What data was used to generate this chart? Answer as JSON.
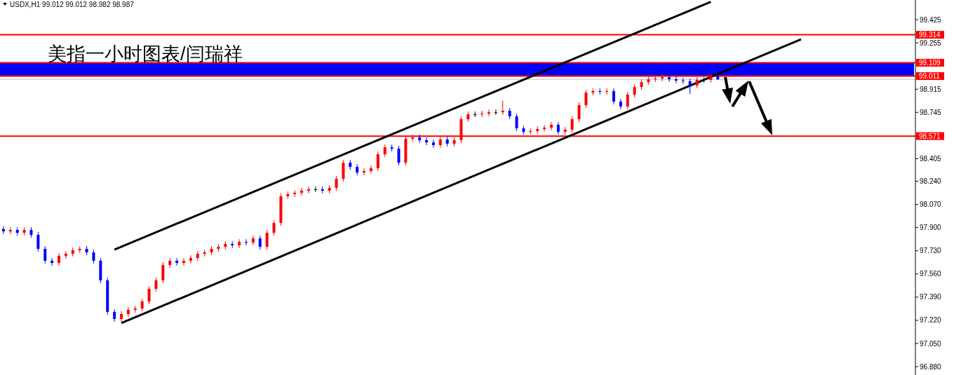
{
  "chart_data": {
    "type": "candlestick",
    "title": "USDX,H1 99.012 99.012 98.982 98.987",
    "annotations": [
      "美指一小时图表/闫瑞祥"
    ],
    "categories": [
      null,
      null,
      null,
      null,
      null,
      null,
      null,
      null,
      null,
      null,
      null,
      null,
      null,
      null,
      null,
      null,
      null,
      null,
      null,
      null,
      null,
      null,
      null,
      null,
      null,
      null,
      null,
      null,
      null,
      null,
      null,
      null,
      null,
      null,
      null,
      null,
      null,
      null,
      null,
      null,
      null,
      null,
      null,
      null,
      null,
      null,
      null,
      null,
      null,
      null,
      null,
      null,
      null,
      null,
      null,
      null,
      null,
      null,
      null,
      null,
      null,
      null,
      null,
      null,
      null,
      null,
      null,
      null,
      null,
      null,
      null,
      null,
      null,
      null,
      null,
      null,
      null,
      null,
      null,
      null,
      null,
      null,
      null,
      null,
      null,
      null,
      null,
      null,
      null,
      null,
      null,
      null,
      null,
      null,
      null,
      null,
      null,
      null,
      null,
      null,
      null,
      null,
      null,
      null,
      null,
      null,
      null,
      null,
      null,
      null,
      null,
      null,
      null,
      null,
      null,
      null,
      null,
      null,
      null,
      null,
      null,
      null,
      null,
      null,
      null,
      null,
      null,
      null,
      null,
      null,
      null,
      null
    ],
    "ohlc": [
      [
        97.89,
        97.91,
        97.852,
        97.872
      ],
      [
        97.872,
        97.903,
        97.852,
        97.883
      ],
      [
        97.883,
        97.903,
        97.842,
        97.862
      ],
      [
        97.862,
        97.903,
        97.842,
        97.883
      ],
      [
        97.883,
        97.903,
        97.827,
        97.847
      ],
      [
        97.847,
        97.867,
        97.724,
        97.744
      ],
      [
        97.744,
        97.764,
        97.637,
        97.657
      ],
      [
        97.657,
        97.677,
        97.621,
        97.641
      ],
      [
        97.641,
        97.713,
        97.621,
        97.693
      ],
      [
        97.693,
        97.728,
        97.673,
        97.708
      ],
      [
        97.708,
        97.754,
        97.688,
        97.734
      ],
      [
        97.734,
        97.764,
        97.714,
        97.744
      ],
      [
        97.744,
        97.764,
        97.698,
        97.718
      ],
      [
        97.718,
        97.738,
        97.637,
        97.657
      ],
      [
        97.657,
        97.677,
        97.493,
        97.513
      ],
      [
        97.513,
        97.533,
        97.262,
        97.282
      ],
      [
        97.282,
        97.302,
        97.21,
        97.23
      ],
      [
        97.23,
        97.286,
        97.21,
        97.266
      ],
      [
        97.266,
        97.317,
        97.246,
        97.297
      ],
      [
        97.297,
        97.327,
        97.277,
        97.307
      ],
      [
        97.307,
        97.378,
        97.287,
        97.358
      ],
      [
        97.358,
        97.471,
        97.338,
        97.451
      ],
      [
        97.451,
        97.533,
        97.431,
        97.513
      ],
      [
        97.513,
        97.646,
        97.493,
        97.626
      ],
      [
        97.626,
        97.677,
        97.606,
        97.657
      ],
      [
        97.657,
        97.677,
        97.621,
        97.641
      ],
      [
        97.641,
        97.677,
        97.621,
        97.657
      ],
      [
        97.657,
        97.697,
        97.637,
        97.677
      ],
      [
        97.677,
        97.728,
        97.657,
        97.708
      ],
      [
        97.708,
        97.738,
        97.688,
        97.718
      ],
      [
        97.718,
        97.764,
        97.698,
        97.744
      ],
      [
        97.744,
        97.779,
        97.724,
        97.759
      ],
      [
        97.759,
        97.8,
        97.739,
        97.78
      ],
      [
        97.78,
        97.8,
        97.75,
        97.77
      ],
      [
        97.77,
        97.815,
        97.75,
        97.795
      ],
      [
        97.795,
        97.815,
        97.77,
        97.79
      ],
      [
        97.79,
        97.841,
        97.77,
        97.821
      ],
      [
        97.821,
        97.841,
        97.739,
        97.759
      ],
      [
        97.759,
        97.882,
        97.739,
        97.862
      ],
      [
        97.862,
        97.954,
        97.842,
        97.934
      ],
      [
        97.934,
        98.15,
        97.914,
        98.13
      ],
      [
        98.13,
        98.165,
        98.11,
        98.145
      ],
      [
        98.145,
        98.175,
        98.125,
        98.155
      ],
      [
        98.155,
        98.191,
        98.135,
        98.171
      ],
      [
        98.171,
        98.201,
        98.151,
        98.181
      ],
      [
        98.181,
        98.201,
        98.161,
        98.181
      ],
      [
        98.181,
        98.201,
        98.151,
        98.171
      ],
      [
        98.171,
        98.211,
        98.151,
        98.191
      ],
      [
        98.191,
        98.278,
        98.171,
        98.258
      ],
      [
        98.258,
        98.396,
        98.238,
        98.376
      ],
      [
        98.376,
        98.396,
        98.325,
        98.345
      ],
      [
        98.345,
        98.365,
        98.284,
        98.304
      ],
      [
        98.304,
        98.335,
        98.284,
        98.315
      ],
      [
        98.315,
        98.355,
        98.295,
        98.335
      ],
      [
        98.335,
        98.458,
        98.315,
        98.438
      ],
      [
        98.438,
        98.509,
        98.418,
        98.489
      ],
      [
        98.489,
        98.509,
        98.459,
        98.479
      ],
      [
        98.479,
        98.499,
        98.356,
        98.376
      ],
      [
        98.376,
        98.571,
        98.356,
        98.551
      ],
      [
        98.551,
        98.581,
        98.531,
        98.561
      ],
      [
        98.561,
        98.581,
        98.521,
        98.541
      ],
      [
        98.541,
        98.561,
        98.505,
        98.525
      ],
      [
        98.525,
        98.545,
        98.485,
        98.505
      ],
      [
        98.505,
        98.566,
        98.485,
        98.546
      ],
      [
        98.546,
        98.566,
        98.495,
        98.515
      ],
      [
        98.515,
        98.561,
        98.495,
        98.541
      ],
      [
        98.541,
        98.715,
        98.521,
        98.695
      ],
      [
        98.695,
        98.751,
        98.675,
        98.731
      ],
      [
        98.731,
        98.751,
        98.711,
        98.731
      ],
      [
        98.731,
        98.756,
        98.711,
        98.736
      ],
      [
        98.736,
        98.766,
        98.716,
        98.746
      ],
      [
        98.746,
        98.766,
        98.726,
        98.746
      ],
      [
        98.746,
        98.83,
        98.726,
        98.757
      ],
      [
        98.757,
        98.777,
        98.696,
        98.716
      ],
      [
        98.716,
        98.736,
        98.608,
        98.628
      ],
      [
        98.628,
        98.648,
        98.582,
        98.602
      ],
      [
        98.602,
        98.628,
        98.582,
        98.608
      ],
      [
        98.608,
        98.643,
        98.588,
        98.623
      ],
      [
        98.623,
        98.653,
        98.603,
        98.633
      ],
      [
        98.633,
        98.674,
        98.613,
        98.654
      ],
      [
        98.654,
        98.674,
        98.582,
        98.602
      ],
      [
        98.602,
        98.638,
        98.582,
        98.618
      ],
      [
        98.618,
        98.715,
        98.598,
        98.695
      ],
      [
        98.695,
        98.818,
        98.675,
        98.798
      ],
      [
        98.798,
        98.91,
        98.778,
        98.89
      ],
      [
        98.89,
        98.921,
        98.87,
        98.901
      ],
      [
        98.901,
        98.921,
        98.876,
        98.896
      ],
      [
        98.896,
        98.921,
        98.876,
        98.901
      ],
      [
        98.901,
        98.921,
        98.804,
        98.824
      ],
      [
        98.824,
        98.844,
        98.768,
        98.788
      ],
      [
        98.788,
        98.895,
        98.768,
        98.875
      ],
      [
        98.875,
        98.951,
        98.855,
        98.931
      ],
      [
        98.931,
        98.987,
        98.911,
        98.967
      ],
      [
        98.967,
        99.008,
        98.947,
        98.988
      ],
      [
        98.988,
        99.013,
        98.968,
        98.993
      ],
      [
        98.993,
        99.023,
        98.973,
        99.003
      ],
      [
        99.003,
        99.023,
        98.968,
        98.988
      ],
      [
        98.988,
        99.008,
        98.958,
        98.978
      ],
      [
        98.978,
        98.998,
        98.953,
        98.973
      ],
      [
        98.973,
        98.993,
        98.88,
        98.942
      ],
      [
        98.942,
        99.003,
        98.922,
        98.983
      ],
      [
        98.983,
        99.003,
        98.963,
        98.983
      ],
      [
        98.983,
        99.032,
        98.963,
        99.012
      ],
      [
        99.012,
        99.012,
        98.982,
        98.987
      ],
      null,
      null,
      null,
      null,
      null,
      null,
      null,
      null,
      null,
      null,
      null,
      null,
      null,
      null,
      null,
      null,
      null,
      null,
      null,
      null,
      null,
      null,
      null,
      null,
      null,
      null,
      null,
      null
    ],
    "colors": [
      "#0000ff",
      "#ff0000",
      "#0000ff",
      "#ff0000",
      "#0000ff",
      "#0000ff",
      "#0000ff",
      "#0000ff",
      "#ff0000",
      "#ff0000",
      "#ff0000",
      "#ff0000",
      "#0000ff",
      "#0000ff",
      "#0000ff",
      "#0000ff",
      "#0000ff",
      "#ff0000",
      "#ff0000",
      "#ff0000",
      "#ff0000",
      "#ff0000",
      "#ff0000",
      "#ff0000",
      "#ff0000",
      "#0000ff",
      "#ff0000",
      "#ff0000",
      "#ff0000",
      "#ff0000",
      "#ff0000",
      "#ff0000",
      "#ff0000",
      "#0000ff",
      "#ff0000",
      "#0000ff",
      "#ff0000",
      "#0000ff",
      "#ff0000",
      "#ff0000",
      "#ff0000",
      "#ff0000",
      "#ff0000",
      "#ff0000",
      "#ff0000",
      "#000000",
      "#0000ff",
      "#ff0000",
      "#ff0000",
      "#ff0000",
      "#0000ff",
      "#0000ff",
      "#ff0000",
      "#ff0000",
      "#ff0000",
      "#ff0000",
      "#0000ff",
      "#0000ff",
      "#ff0000",
      "#ff0000",
      "#0000ff",
      "#0000ff",
      "#0000ff",
      "#ff0000",
      "#0000ff",
      "#ff0000",
      "#ff0000",
      "#ff0000",
      "#000000",
      "#ff0000",
      "#ff0000",
      "#000000",
      "#ff0000",
      "#0000ff",
      "#0000ff",
      "#0000ff",
      "#ff0000",
      "#ff0000",
      "#ff0000",
      "#ff0000",
      "#0000ff",
      "#ff0000",
      "#ff0000",
      "#ff0000",
      "#ff0000",
      "#ff0000",
      "#0000ff",
      "#ff0000",
      "#0000ff",
      "#0000ff",
      "#ff0000",
      "#ff0000",
      "#ff0000",
      "#ff0000",
      "#ff0000",
      "#ff0000",
      "#0000ff",
      "#0000ff",
      "#0000ff",
      "#0000ff",
      "#ff0000",
      "#000000",
      "#ff0000",
      "#0000ff",
      null,
      null,
      null,
      null,
      null,
      null,
      null,
      null,
      null,
      null,
      null,
      null,
      null,
      null,
      null,
      null,
      null,
      null,
      null,
      null,
      null,
      null,
      null,
      null,
      null,
      null,
      null,
      null
    ],
    "series": [
      {
        "type": "line",
        "color": "#000000",
        "values": [
          null,
          null,
          null,
          null,
          null,
          null,
          null,
          null,
          null,
          null,
          null,
          null,
          null,
          null,
          null,
          null,
          97.739,
          null,
          null,
          null,
          null,
          null,
          null,
          null,
          null,
          null,
          null,
          null,
          null,
          null,
          null,
          null,
          null,
          null,
          null,
          null,
          null,
          null,
          null,
          null,
          null,
          null,
          null,
          null,
          null,
          null,
          null,
          null,
          null,
          null,
          null,
          null,
          null,
          null,
          null,
          null,
          null,
          null,
          null,
          null,
          null,
          null,
          null,
          null,
          null,
          null,
          null,
          null,
          null,
          null,
          null,
          null,
          null,
          null,
          null,
          null,
          null,
          null,
          null,
          null,
          null,
          null,
          null,
          null,
          null,
          null,
          null,
          null,
          null,
          null,
          null,
          null,
          null,
          null,
          null,
          null,
          null,
          null,
          null,
          null,
          null,
          null,
          99.555,
          null,
          null,
          null,
          null,
          null,
          null,
          null,
          null,
          null,
          null,
          null,
          null,
          null,
          null,
          null,
          null,
          null,
          null,
          null,
          null,
          null,
          null,
          null,
          null,
          null,
          null,
          null,
          null,
          null
        ]
      },
      {
        "type": "line",
        "color": "#000000",
        "values": [
          null,
          null,
          null,
          null,
          null,
          null,
          null,
          null,
          null,
          null,
          null,
          null,
          null,
          null,
          null,
          null,
          null,
          97.2,
          null,
          null,
          null,
          null,
          null,
          null,
          null,
          null,
          null,
          null,
          null,
          null,
          null,
          null,
          null,
          null,
          null,
          null,
          null,
          null,
          null,
          null,
          null,
          null,
          null,
          null,
          null,
          null,
          null,
          null,
          null,
          null,
          null,
          null,
          null,
          null,
          null,
          null,
          null,
          null,
          null,
          null,
          null,
          null,
          null,
          null,
          null,
          null,
          null,
          null,
          null,
          null,
          null,
          null,
          null,
          null,
          null,
          null,
          null,
          null,
          null,
          null,
          null,
          null,
          null,
          null,
          null,
          null,
          null,
          null,
          null,
          null,
          null,
          null,
          null,
          null,
          null,
          null,
          null,
          null,
          null,
          null,
          null,
          null,
          null,
          null,
          null,
          null,
          null,
          null,
          null,
          null,
          null,
          null,
          null,
          null,
          null,
          99.281,
          null,
          null,
          null,
          null,
          null,
          null,
          null,
          null,
          null,
          null,
          null,
          null,
          null,
          null,
          null,
          null
        ]
      }
    ],
    "ylim": [
      96.819,
      99.569
    ],
    "yticks": [
      99.425,
      99.255,
      98.915,
      98.745,
      98.405,
      {
        "value": 98.24,
        "label": "98.240"
      },
      {
        "value": 98.07,
        "label": "98.070"
      },
      {
        "value": 97.9,
        "label": "97.900"
      },
      {
        "value": 97.73,
        "label": "97.730"
      },
      {
        "value": 97.56,
        "label": "97.560"
      },
      {
        "value": 97.39,
        "label": "97.390"
      },
      {
        "value": 97.22,
        "label": "97.220"
      },
      {
        "value": 97.05,
        "label": "97.050"
      },
      {
        "value": 96.88,
        "label": "96.880"
      }
    ],
    "tick_labels": "y",
    "bands": [
      {
        "axis": "y",
        "from": 99.011,
        "to": 99.109,
        "color": "#0000ff"
      }
    ],
    "ref_lines": [
      {
        "axis": "y",
        "value": 99.314,
        "label": "99.314",
        "color": "#ff0000"
      },
      {
        "axis": "y",
        "value": 99.109,
        "label": "99.109",
        "color": "#ff0000"
      },
      {
        "axis": "y",
        "value": 99.011,
        "label": "99.011",
        "color": "#ff0000"
      },
      {
        "axis": "y",
        "value": 98.987,
        "color": "#c0c0c0"
      },
      {
        "axis": "y",
        "value": 98.571,
        "label": "98.571",
        "color": "#ff0000"
      }
    ]
  }
}
